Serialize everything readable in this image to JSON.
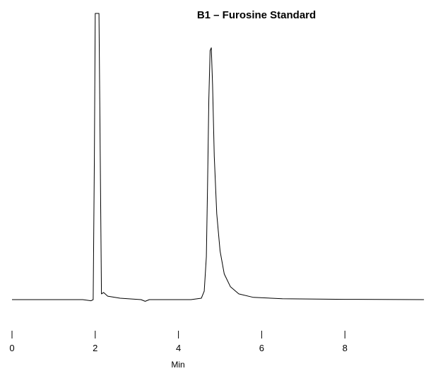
{
  "chart_data": {
    "type": "line",
    "title": "B1 – Furosine Standard",
    "xlabel": "Min",
    "ylabel": "",
    "xlim": [
      0,
      9.9
    ],
    "ylim": [
      0,
      1.0
    ],
    "xticks": [
      0,
      2,
      4,
      6,
      8
    ],
    "xtick_labels": [
      "0",
      "2",
      "4",
      "6",
      "8"
    ],
    "grid": false,
    "series": [
      {
        "points": [
          [
            0.0,
            0.0
          ],
          [
            1.0,
            0.0
          ],
          [
            1.7,
            0.0
          ],
          [
            1.9,
            -0.004
          ],
          [
            1.95,
            0.0
          ],
          [
            1.98,
            0.5
          ],
          [
            2.0,
            1.0
          ],
          [
            2.05,
            1.0
          ],
          [
            2.09,
            1.0
          ],
          [
            2.12,
            0.5
          ],
          [
            2.15,
            0.02
          ],
          [
            2.2,
            0.025
          ],
          [
            2.3,
            0.012
          ],
          [
            2.6,
            0.005
          ],
          [
            3.1,
            0.0
          ],
          [
            3.2,
            -0.006
          ],
          [
            3.3,
            0.0
          ],
          [
            4.3,
            0.0
          ],
          [
            4.55,
            0.005
          ],
          [
            4.62,
            0.03
          ],
          [
            4.67,
            0.15
          ],
          [
            4.7,
            0.4
          ],
          [
            4.73,
            0.7
          ],
          [
            4.76,
            0.87
          ],
          [
            4.79,
            0.88
          ],
          [
            4.82,
            0.75
          ],
          [
            4.86,
            0.5
          ],
          [
            4.92,
            0.3
          ],
          [
            5.0,
            0.17
          ],
          [
            5.1,
            0.09
          ],
          [
            5.25,
            0.045
          ],
          [
            5.45,
            0.02
          ],
          [
            5.8,
            0.008
          ],
          [
            6.5,
            0.003
          ],
          [
            8.0,
            0.001
          ],
          [
            9.9,
            0.0
          ]
        ]
      }
    ]
  }
}
